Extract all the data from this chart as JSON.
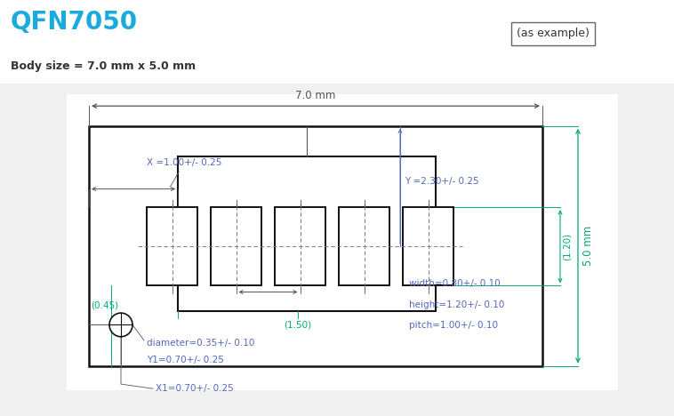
{
  "title": "QFN7050",
  "title_color": "#1AAADD",
  "body_size_text": "Body size = 7.0 mm x 5.0 mm",
  "example_text": "(as example)",
  "bg_color": "#ffffff",
  "dim_color_blue": "#5566BB",
  "dim_color_green": "#00AA77",
  "black": "#111111",
  "gray": "#555555",
  "annotations": {
    "width_dim": "width=0.80+/- 0.10",
    "height_dim": "height=1.20+/- 0.10",
    "pitch_dim": "pitch=1.00+/- 0.10",
    "x_dim": "X =1.00+/- 0.25",
    "y_dim": "Y =2.30+/- 0.25",
    "x1_dim": "X1=0.70+/- 0.25",
    "y1_dim": "Y1=0.70+/- 0.25",
    "diam_dim": "diameter=0.35+/- 0.10",
    "ref_150": "(1.50)",
    "ref_045": "(0.45)",
    "ref_120": "(1.20)",
    "total_width": "7.0 mm",
    "total_height": "5.0 mm"
  }
}
